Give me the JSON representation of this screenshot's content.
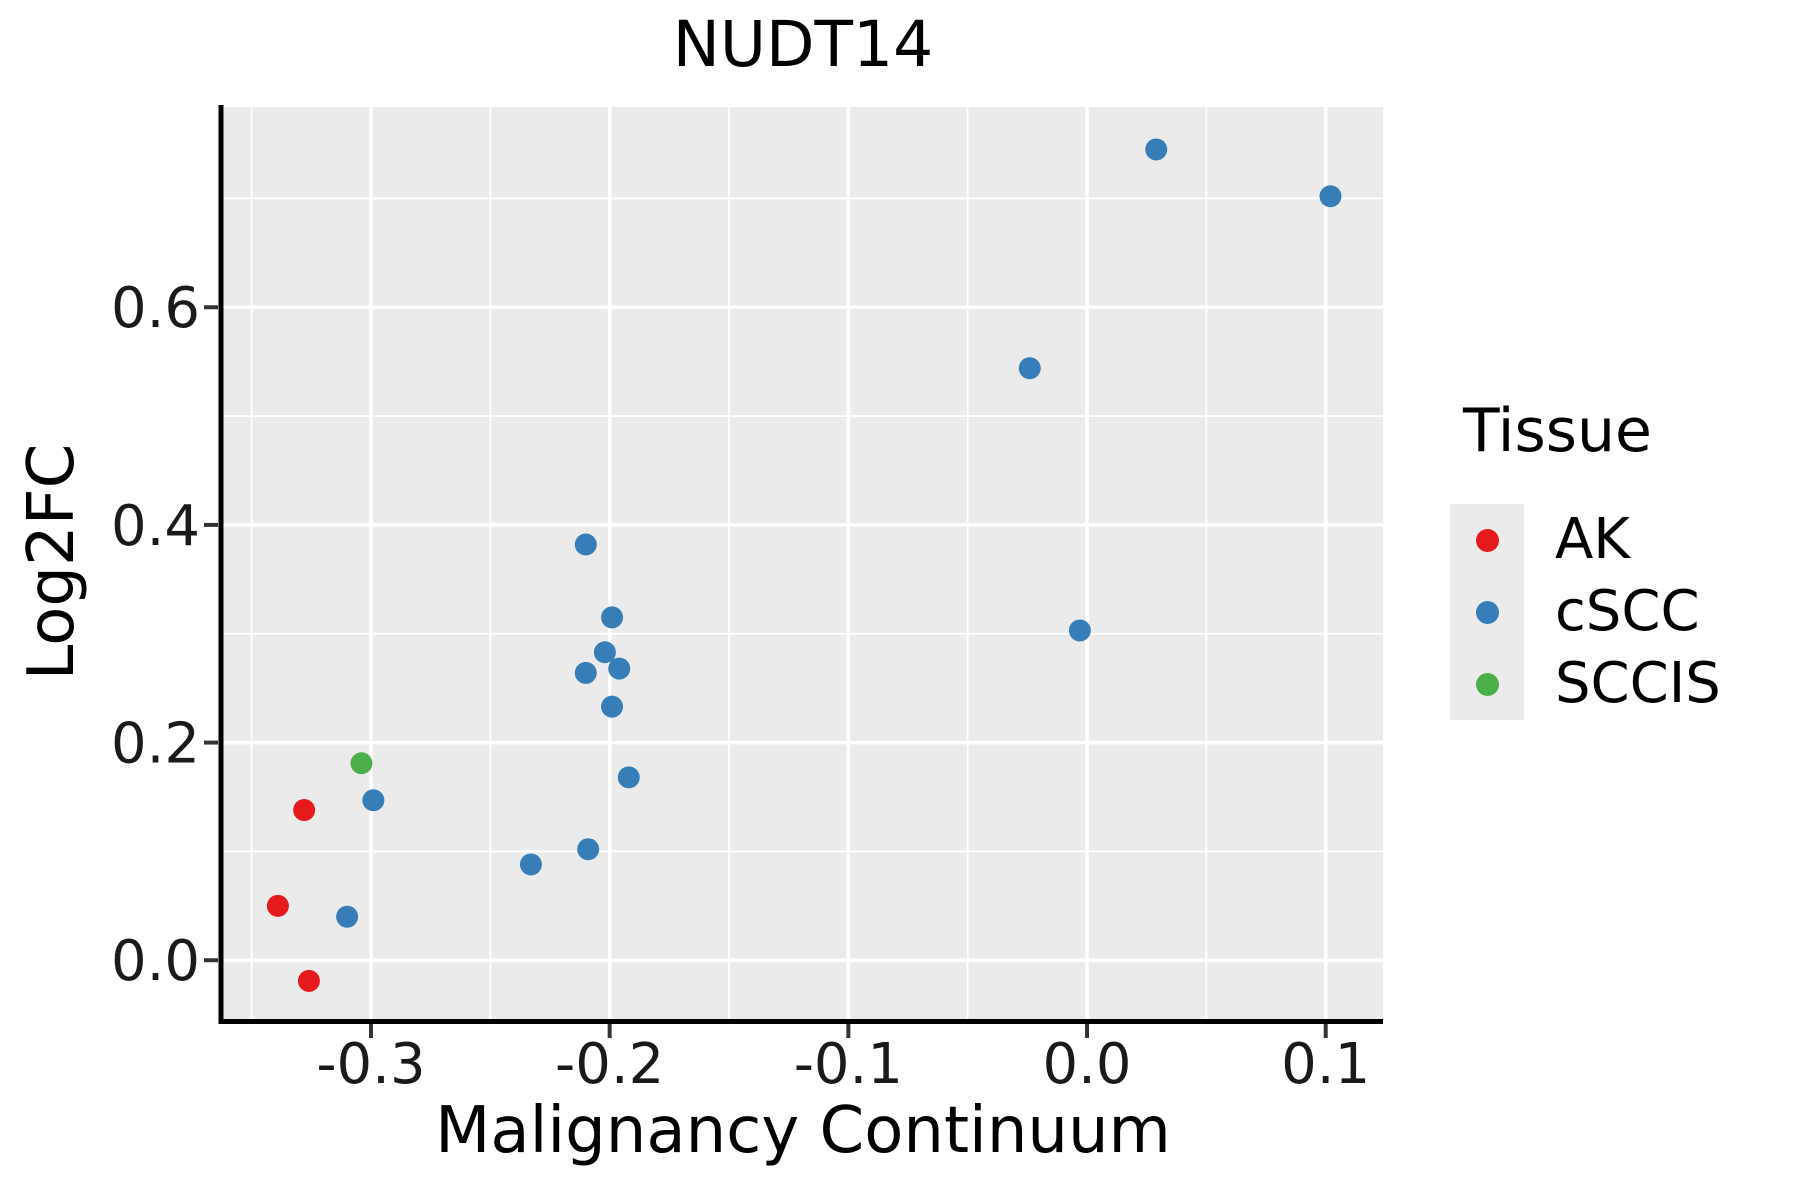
{
  "figure": {
    "title": "NUDT14",
    "x_axis_label": "Malignancy Continuum",
    "y_axis_label": "Log2FC"
  },
  "legend": {
    "title": "Tissue",
    "items": [
      {
        "label": "AK",
        "color": "#E41A1C"
      },
      {
        "label": "cSCC",
        "color": "#377EB8"
      },
      {
        "label": "SCCIS",
        "color": "#4DAF4A"
      }
    ]
  },
  "chart_data": {
    "type": "scatter",
    "title": "NUDT14",
    "xlabel": "Malignancy Continuum",
    "ylabel": "Log2FC",
    "xlim": [
      -0.362,
      0.124
    ],
    "ylim": [
      -0.054,
      0.784
    ],
    "x_major_ticks": [
      -0.3,
      -0.2,
      -0.1,
      0.0,
      0.1
    ],
    "x_tick_labels": [
      "-0.3",
      "-0.2",
      "-0.1",
      "0.0",
      "0.1"
    ],
    "x_minor_ticks": [
      -0.35,
      -0.25,
      -0.15,
      -0.05,
      0.05
    ],
    "y_major_ticks": [
      0.0,
      0.2,
      0.4,
      0.6
    ],
    "y_tick_labels": [
      "0.0",
      "0.2",
      "0.4",
      "0.6"
    ],
    "y_minor_ticks": [
      0.1,
      0.3,
      0.5,
      0.7
    ],
    "grid": true,
    "legend_position": "right",
    "panel_background": "#EBEBEB",
    "grid_color": "#FFFFFF",
    "axis_color": "#000000",
    "tick_color": "#333333",
    "point_radius_px": 11,
    "series": [
      {
        "name": "AK",
        "color": "#E41A1C",
        "points": [
          [
            -0.328,
            0.138
          ],
          [
            -0.339,
            0.05
          ],
          [
            -0.326,
            -0.019
          ]
        ]
      },
      {
        "name": "cSCC",
        "color": "#377EB8",
        "points": [
          [
            0.029,
            0.745
          ],
          [
            0.102,
            0.702
          ],
          [
            -0.024,
            0.544
          ],
          [
            -0.003,
            0.303
          ],
          [
            -0.21,
            0.382
          ],
          [
            -0.199,
            0.315
          ],
          [
            -0.202,
            0.283
          ],
          [
            -0.21,
            0.264
          ],
          [
            -0.196,
            0.268
          ],
          [
            -0.199,
            0.233
          ],
          [
            -0.192,
            0.168
          ],
          [
            -0.209,
            0.102
          ],
          [
            -0.233,
            0.088
          ],
          [
            -0.299,
            0.147
          ],
          [
            -0.31,
            0.04
          ]
        ]
      },
      {
        "name": "SCCIS",
        "color": "#4DAF4A",
        "points": [
          [
            -0.304,
            0.181
          ]
        ]
      }
    ]
  }
}
